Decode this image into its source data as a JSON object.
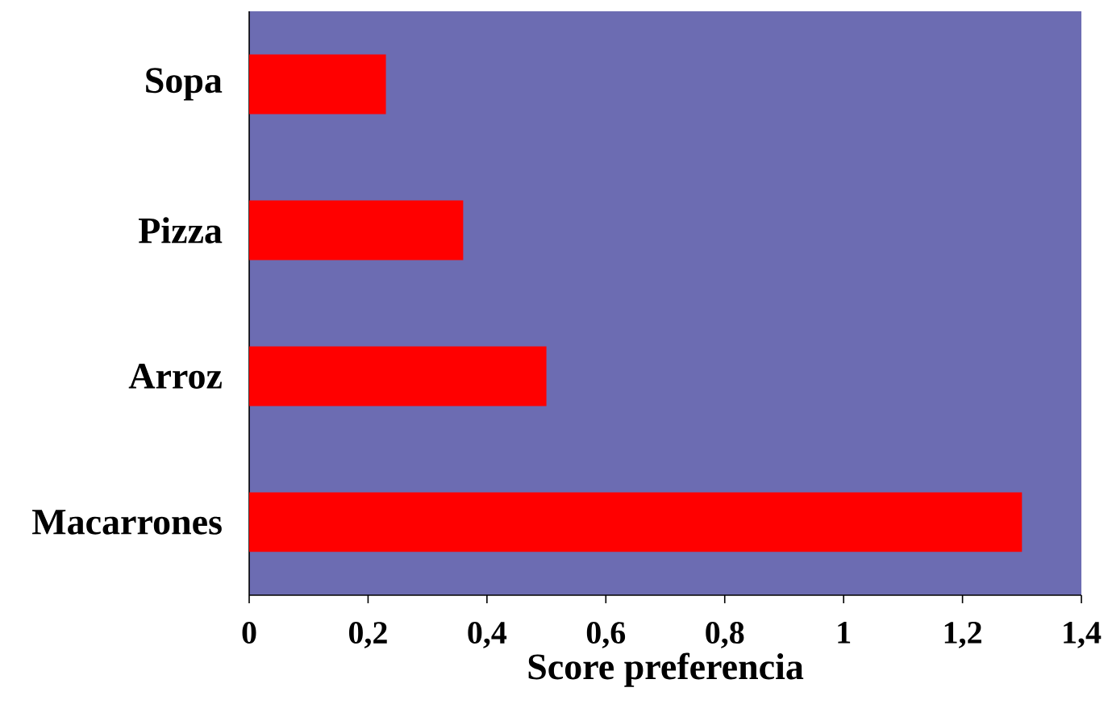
{
  "chart_data": {
    "type": "bar",
    "orientation": "horizontal",
    "categories": [
      "Sopa",
      "Pizza",
      "Arroz",
      "Macarrones"
    ],
    "values": [
      0.23,
      0.36,
      0.5,
      1.3
    ],
    "color": "#ff0000",
    "xlabel": "Score preferencia",
    "xlim": [
      0,
      1.4
    ],
    "xticks": [
      0,
      {
        "value": 0.2,
        "label": "0,2"
      },
      {
        "value": 0.4,
        "label": "0,4"
      },
      {
        "value": 0.6,
        "label": "0,6"
      },
      {
        "value": 0.8,
        "label": "0,8"
      },
      1,
      {
        "value": 1.2,
        "label": "1,2"
      },
      {
        "value": 1.4,
        "label": "1,4"
      }
    ]
  }
}
